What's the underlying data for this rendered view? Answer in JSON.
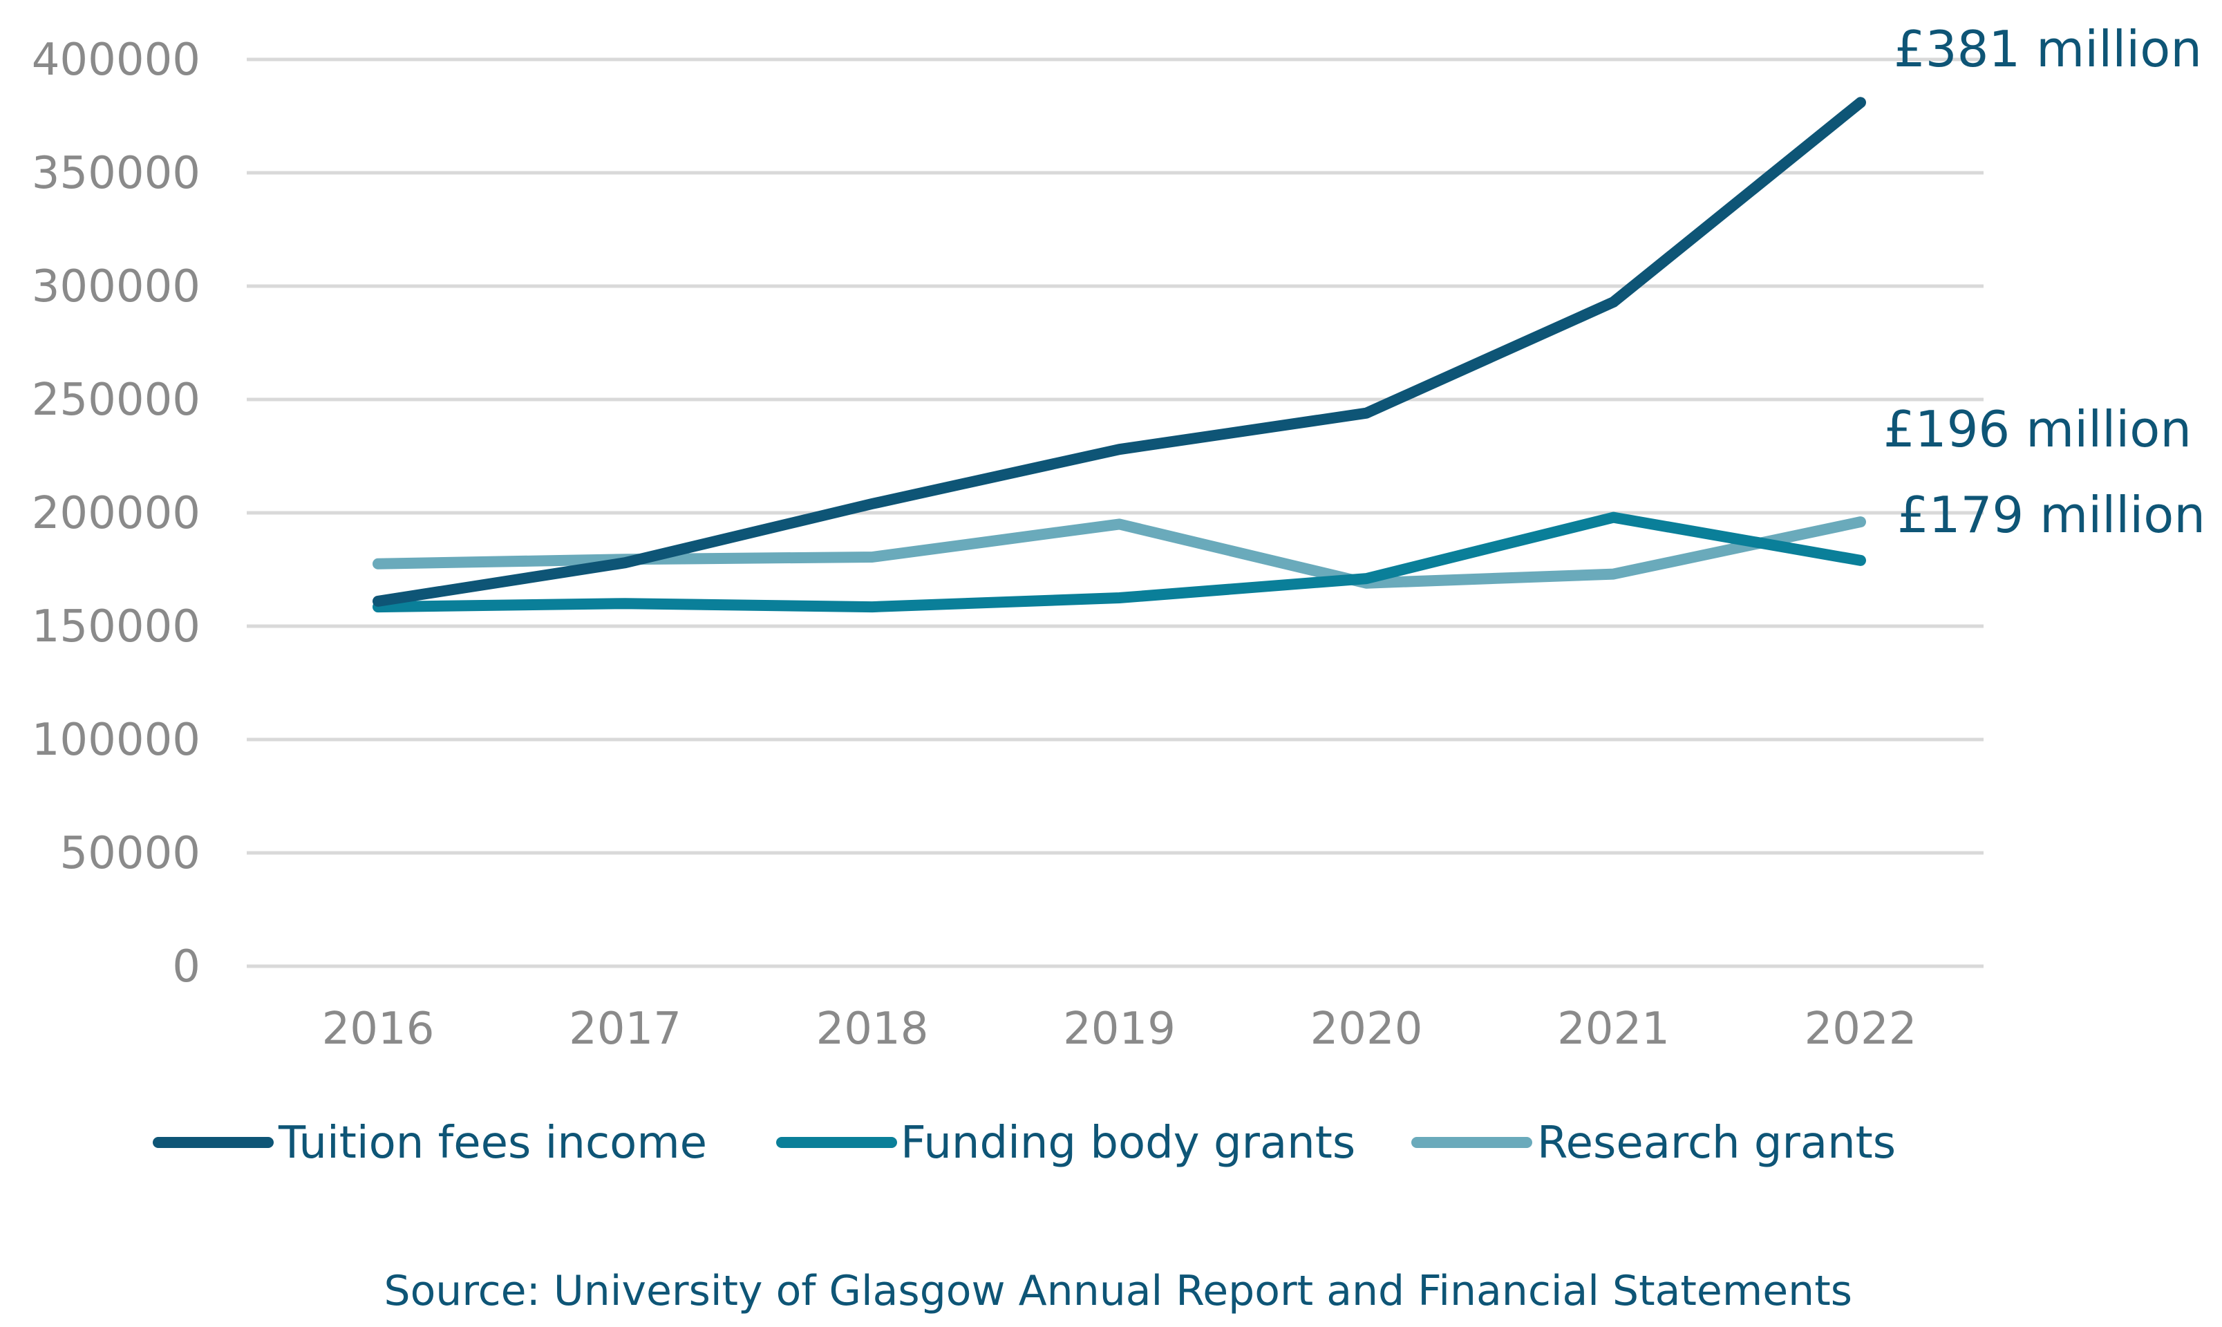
{
  "chart_data": {
    "type": "line",
    "title": "",
    "xlabel": "",
    "ylabel": "",
    "categories": [
      "2016",
      "2017",
      "2018",
      "2019",
      "2020",
      "2021",
      "2022"
    ],
    "ylim": [
      0,
      400000
    ],
    "yticks": [
      "0",
      "50000",
      "100000",
      "150000",
      "200000",
      "250000",
      "300000",
      "350000",
      "400000"
    ],
    "grid": true,
    "legend_position": "bottom",
    "series": [
      {
        "name": "Research grants",
        "color": "#6aaabb",
        "values": [
          177500,
          179500,
          180500,
          195000,
          169000,
          173000,
          196000
        ]
      },
      {
        "name": "Funding body grants",
        "color": "#0a7f99",
        "values": [
          158500,
          160000,
          158500,
          162500,
          171000,
          198000,
          179000
        ]
      },
      {
        "name": "Tuition fees income",
        "color": "#0e5576",
        "values": [
          161000,
          178000,
          204000,
          228000,
          244000,
          293000,
          381000
        ]
      }
    ],
    "legend_order": [
      "Tuition fees income",
      "Funding body grants",
      "Research grants"
    ],
    "annotations": [
      {
        "text": "£381 million",
        "series": "Tuition fees income"
      },
      {
        "text": "£196 million",
        "series": "Research grants"
      },
      {
        "text": "£179 million",
        "series": "Funding body grants"
      }
    ],
    "source": "Source: University of Glasgow Annual Report and Financial Statements"
  }
}
